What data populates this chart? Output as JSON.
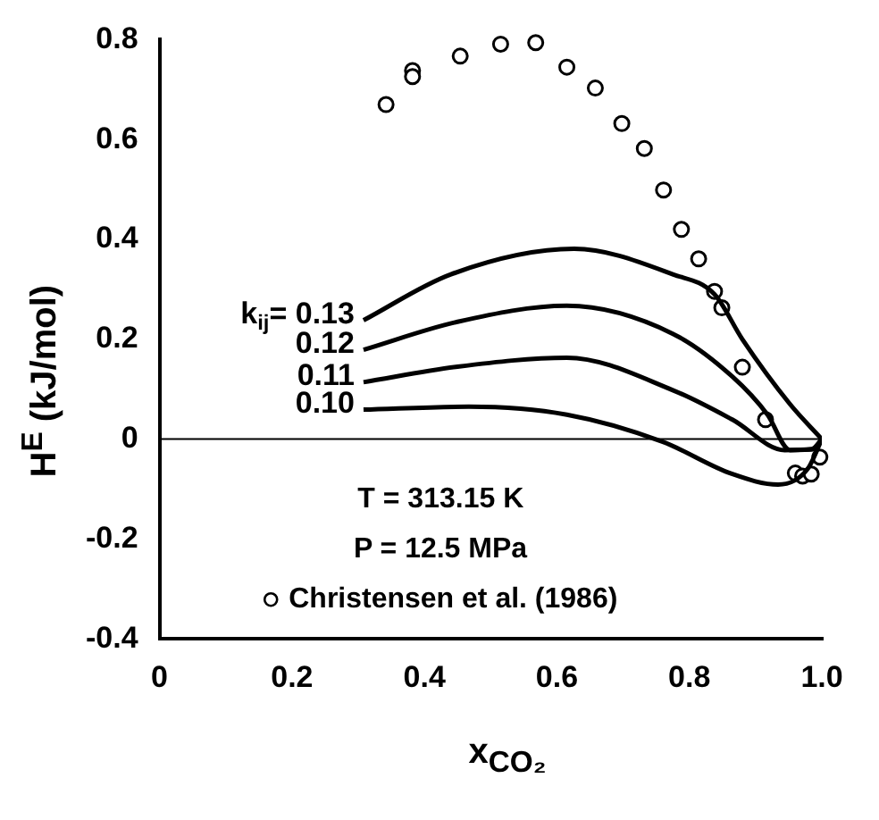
{
  "chart_data": {
    "type": "line",
    "xlabel": "x$_{CO₂}$",
    "ylabel": "H$^{E}$ (kJ/mol)",
    "xlim": [
      0,
      1
    ],
    "xticks": [
      0,
      0.2,
      0.4,
      0.6,
      0.8,
      {
        "value": 1,
        "label": "1.0"
      }
    ],
    "ylim": [
      -0.4,
      0.8
    ],
    "yticks": [
      -0.4,
      -0.2,
      0,
      0.2,
      0.4,
      0.6,
      0.8
    ],
    "grid": false,
    "legend": "bottom",
    "marker": "none",
    "line_style": "solid",
    "ref_lines": [
      {
        "axis": "y",
        "value": 0,
        "color": "#000000"
      }
    ],
    "annotations": [
      "T = 313.15 K",
      "P = 12.5 MPa"
    ],
    "series": [
      {
        "name": "k$_{ij}$= 0.13",
        "type": "line",
        "color": "#000000",
        "x": [
          0.308,
          0.44,
          0.626,
          0.775,
          0.838,
          0.88,
          0.952,
          1.0
        ],
        "values": [
          0.238,
          0.33,
          0.381,
          0.33,
          0.29,
          0.2,
          0.07,
          0
        ]
      },
      {
        "name": "0.12",
        "type": "line",
        "color": "#000000",
        "x": [
          0.308,
          0.45,
          0.615,
          0.775,
          0.865,
          0.918,
          0.952,
          0.99,
          1.0
        ],
        "values": [
          0.179,
          0.235,
          0.267,
          0.211,
          0.125,
          0.049,
          -0.022,
          -0.02,
          0
        ]
      },
      {
        "name": "0.11",
        "type": "line",
        "color": "#000000",
        "x": [
          0.308,
          0.45,
          0.615,
          0.775,
          0.865,
          0.944,
          0.985,
          1.0
        ],
        "values": [
          0.114,
          0.145,
          0.163,
          0.098,
          0.039,
          -0.022,
          -0.02,
          0
        ]
      },
      {
        "name": "0.10",
        "type": "line",
        "color": "#000000",
        "x": [
          0.308,
          0.467,
          0.615,
          0.759,
          0.865,
          0.934,
          0.979,
          1.0
        ],
        "values": [
          0.059,
          0.065,
          0.049,
          -0.005,
          -0.07,
          -0.091,
          -0.059,
          0
        ]
      },
      {
        "name": "Christensen et al. (1986)",
        "type": "scatter",
        "marker": "circle",
        "color": "#000000",
        "x": [
          0.342,
          0.382,
          0.382,
          0.454,
          0.515,
          0.568,
          0.615,
          0.658,
          0.698,
          0.732,
          0.761,
          0.788,
          0.814,
          0.838,
          0.849,
          0.88,
          0.915,
          0.96,
          0.971,
          0.984,
          0.997
        ],
        "values": [
          0.67,
          0.738,
          0.726,
          0.767,
          0.791,
          0.794,
          0.745,
          0.703,
          0.632,
          0.582,
          0.499,
          0.42,
          0.361,
          0.296,
          0.263,
          0.144,
          0.039,
          -0.068,
          -0.074,
          -0.07,
          -0.036
        ]
      }
    ]
  }
}
